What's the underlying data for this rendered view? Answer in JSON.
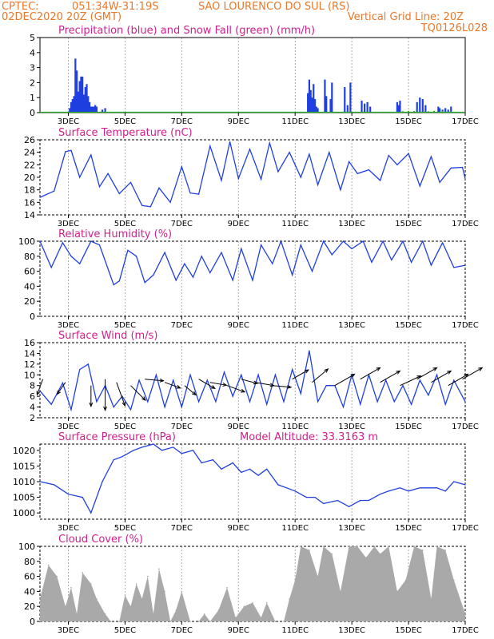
{
  "header": {
    "source": "CPTEC:",
    "coords": "051:34W-31:19S",
    "location": "SAO LOURENCO DO SUL (RS)",
    "run": "02DEC2020 20Z (GMT)",
    "grid_note": "Vertical Grid Line: 20Z",
    "code": "TQ0126L028"
  },
  "colors": {
    "header": "#e8782a",
    "title": "#d0208c",
    "series": "#1f3fe0",
    "snow": "#22aa22",
    "cloud": "#a9a9a9",
    "grid": "#9a9a9a"
  },
  "chart_data": [
    {
      "type": "bar",
      "title": "Precipitation (blue) and Snow Fall (green) (mm/h)",
      "x_tick_labels": [
        "3DEC",
        "5DEC",
        "7DEC",
        "9DEC",
        "11DEC",
        "13DEC",
        "15DEC",
        "17DEC"
      ],
      "ylim": [
        0,
        5
      ],
      "y_ticks": [
        0,
        1,
        2,
        3,
        4,
        5
      ],
      "series": [
        {
          "name": "Precipitation",
          "x": [
            1.05,
            1.1,
            1.15,
            1.2,
            1.25,
            1.3,
            1.35,
            1.4,
            1.45,
            1.5,
            1.55,
            1.6,
            1.65,
            1.7,
            1.75,
            1.8,
            1.85,
            1.9,
            1.95,
            2.0,
            2.2,
            2.3,
            9.45,
            9.5,
            9.55,
            9.6,
            9.65,
            9.7,
            9.75,
            9.8,
            10.05,
            10.1,
            10.25,
            10.3,
            10.75,
            10.85,
            10.95,
            11.35,
            11.45,
            11.55,
            11.65,
            12.6,
            12.65,
            12.7,
            13.3,
            13.4,
            13.5,
            13.6,
            14.05,
            14.1,
            14.2,
            14.3,
            14.4,
            14.5
          ],
          "values": [
            0.3,
            0.7,
            0.9,
            1.1,
            3.6,
            2.8,
            1.4,
            2.1,
            2.4,
            2.4,
            1.2,
            1.7,
            1.9,
            1.1,
            0.7,
            0.4,
            0.4,
            0.4,
            0.5,
            0.4,
            0.2,
            0.3,
            1.3,
            2.2,
            1.5,
            1.0,
            1.9,
            0.9,
            0.4,
            0.3,
            2.2,
            1.1,
            0.9,
            2.0,
            1.7,
            0.5,
            2.0,
            0.8,
            0.6,
            0.7,
            0.4,
            0.7,
            0.5,
            0.8,
            0.7,
            1.0,
            0.9,
            0.5,
            0.4,
            0.3,
            0.2,
            0.3,
            0.2,
            0.4
          ]
        },
        {
          "name": "Snow Fall",
          "x": [
            12.8,
            13.0,
            13.2,
            13.7,
            13.9,
            14.2
          ],
          "values": [
            0.04,
            0.06,
            0.05,
            0.04,
            0.06,
            0.05
          ]
        }
      ]
    },
    {
      "type": "line",
      "title": "Surface Temperature (nC)",
      "ylim": [
        14,
        26
      ],
      "y_ticks": [
        14,
        16,
        18,
        20,
        22,
        24,
        26
      ],
      "x": [
        0,
        0.5,
        0.9,
        1.1,
        1.4,
        1.8,
        2.1,
        2.4,
        2.8,
        3.2,
        3.6,
        3.9,
        4.2,
        4.6,
        5.0,
        5.3,
        5.6,
        6.0,
        6.4,
        6.7,
        7.0,
        7.4,
        7.8,
        8.1,
        8.4,
        8.8,
        9.2,
        9.5,
        9.8,
        10.2,
        10.6,
        10.9,
        11.2,
        11.6,
        12.0,
        12.3,
        12.6,
        13.0,
        13.4,
        13.8,
        14.1,
        14.5,
        14.9,
        15.0
      ],
      "values": [
        16.8,
        17.8,
        24.1,
        24.3,
        20.0,
        23.6,
        18.5,
        20.6,
        17.4,
        19.2,
        15.5,
        15.3,
        18.3,
        16.0,
        21.7,
        17.5,
        17.3,
        25.0,
        19.5,
        25.7,
        19.8,
        24.5,
        19.7,
        25.5,
        20.9,
        24.0,
        20.0,
        23.7,
        18.8,
        24.0,
        18.0,
        22.5,
        20.6,
        21.2,
        19.5,
        23.5,
        22.0,
        23.8,
        18.6,
        23.3,
        19.2,
        21.5,
        21.6,
        19.8
      ]
    },
    {
      "type": "line",
      "title": "Relative Humidity (%)",
      "ylim": [
        0,
        100
      ],
      "y_ticks": [
        0,
        20,
        40,
        60,
        80,
        100
      ],
      "x": [
        0,
        0.4,
        0.8,
        1.1,
        1.4,
        1.8,
        2.1,
        2.6,
        2.8,
        3.1,
        3.4,
        3.7,
        4.0,
        4.4,
        4.8,
        5.1,
        5.4,
        5.7,
        6.0,
        6.4,
        6.8,
        7.1,
        7.5,
        7.8,
        8.2,
        8.5,
        8.9,
        9.2,
        9.6,
        10.0,
        10.3,
        10.7,
        11.0,
        11.4,
        11.7,
        12.1,
        12.4,
        12.8,
        13.1,
        13.5,
        13.8,
        14.2,
        14.6,
        15.0
      ],
      "values": [
        100,
        65,
        98,
        80,
        70,
        100,
        95,
        42,
        47,
        88,
        80,
        45,
        55,
        85,
        48,
        70,
        52,
        80,
        58,
        85,
        48,
        90,
        48,
        95,
        70,
        100,
        55,
        95,
        60,
        100,
        82,
        100,
        90,
        100,
        72,
        100,
        75,
        100,
        72,
        100,
        68,
        98,
        65,
        68
      ]
    },
    {
      "type": "line",
      "title": "Surface Wind (m/s)",
      "ylim": [
        2,
        16
      ],
      "y_ticks": [
        2,
        4,
        6,
        8,
        10,
        12,
        14,
        16
      ],
      "x": [
        0,
        0.4,
        0.8,
        1.1,
        1.4,
        1.7,
        2.0,
        2.3,
        2.6,
        2.9,
        3.2,
        3.5,
        3.8,
        4.1,
        4.4,
        4.7,
        5.0,
        5.3,
        5.6,
        5.9,
        6.2,
        6.5,
        6.8,
        7.1,
        7.4,
        7.7,
        8.0,
        8.3,
        8.6,
        8.9,
        9.2,
        9.5,
        9.8,
        10.1,
        10.4,
        10.7,
        11.0,
        11.3,
        11.6,
        11.9,
        12.2,
        12.5,
        12.8,
        13.1,
        13.4,
        13.7,
        14.0,
        14.3,
        14.6,
        15.0
      ],
      "values": [
        7,
        4.5,
        8.5,
        3.5,
        11,
        12,
        5,
        8,
        4,
        6,
        3.5,
        9,
        5,
        10,
        4,
        9,
        4,
        10,
        5,
        9,
        5,
        10.5,
        6,
        10,
        5,
        10,
        4.5,
        10,
        5,
        11,
        6.5,
        14.5,
        5,
        8,
        8,
        4,
        10,
        4.5,
        10,
        5,
        9,
        5,
        8,
        4.5,
        9,
        6.2,
        10,
        4.5,
        9,
        5
      ],
      "arrows": [
        {
          "x": 0.1,
          "speed": 8,
          "dir": 200
        },
        {
          "x": 0.9,
          "speed": 7,
          "dir": 215
        },
        {
          "x": 1.8,
          "speed": 10,
          "dir": 180
        },
        {
          "x": 2.3,
          "speed": 15,
          "dir": 180
        },
        {
          "x": 2.7,
          "speed": 12,
          "dir": 160
        },
        {
          "x": 3.2,
          "speed": 10,
          "dir": 135
        },
        {
          "x": 3.7,
          "speed": 9,
          "dir": 95
        },
        {
          "x": 4.4,
          "speed": 8,
          "dir": 110
        },
        {
          "x": 5.1,
          "speed": 7,
          "dir": 130
        },
        {
          "x": 5.6,
          "speed": 9,
          "dir": 120
        },
        {
          "x": 6.0,
          "speed": 8,
          "dir": 100
        },
        {
          "x": 6.6,
          "speed": 9,
          "dir": 110
        },
        {
          "x": 7.1,
          "speed": 8,
          "dir": 105
        },
        {
          "x": 7.6,
          "speed": 9,
          "dir": 100
        },
        {
          "x": 8.2,
          "speed": 9,
          "dir": 95
        },
        {
          "x": 8.9,
          "speed": 9,
          "dir": 60
        },
        {
          "x": 9.6,
          "speed": 10,
          "dir": 50
        },
        {
          "x": 10.4,
          "speed": 11,
          "dir": 60
        },
        {
          "x": 11.3,
          "speed": 11,
          "dir": 60
        },
        {
          "x": 12.0,
          "speed": 11,
          "dir": 60
        },
        {
          "x": 12.7,
          "speed": 11,
          "dir": 65
        },
        {
          "x": 13.3,
          "speed": 11,
          "dir": 60
        },
        {
          "x": 13.8,
          "speed": 11,
          "dir": 60
        },
        {
          "x": 14.4,
          "speed": 11,
          "dir": 60
        },
        {
          "x": 14.9,
          "speed": 11,
          "dir": 60
        }
      ]
    },
    {
      "type": "line",
      "title": "Surface Pressure (hPa)",
      "annotation": "Model Altitude: 33.3163 m",
      "ylim": [
        998,
        1022
      ],
      "y_ticks": [
        1000,
        1005,
        1010,
        1015,
        1020
      ],
      "x": [
        0,
        0.5,
        1.0,
        1.5,
        1.8,
        2.2,
        2.6,
        2.9,
        3.3,
        3.6,
        4.0,
        4.3,
        4.7,
        5.0,
        5.4,
        5.7,
        6.1,
        6.4,
        6.8,
        7.1,
        7.4,
        7.7,
        8.0,
        8.4,
        8.7,
        9.0,
        9.4,
        9.7,
        10.0,
        10.5,
        10.9,
        11.3,
        11.6,
        12.0,
        12.3,
        12.7,
        13.0,
        13.4,
        13.7,
        14.0,
        14.3,
        14.6,
        15.0
      ],
      "values": [
        1010,
        1009,
        1006,
        1005,
        1000,
        1010,
        1017,
        1018,
        1020,
        1021,
        1022,
        1020,
        1021,
        1019,
        1020,
        1016,
        1017,
        1014,
        1016,
        1013,
        1014,
        1012,
        1014,
        1009,
        1008,
        1007,
        1005,
        1005,
        1003,
        1004,
        1002,
        1004,
        1004,
        1006,
        1007,
        1008,
        1007,
        1008,
        1008,
        1008,
        1007,
        1010,
        1009
      ]
    },
    {
      "type": "area",
      "title": "Cloud Cover (%)",
      "ylim": [
        0,
        100
      ],
      "y_ticks": [
        0,
        20,
        40,
        60,
        80,
        100
      ],
      "x": [
        0,
        0.3,
        0.6,
        0.9,
        1.1,
        1.3,
        1.5,
        1.8,
        2.0,
        2.3,
        2.5,
        2.8,
        3.0,
        3.2,
        3.4,
        3.6,
        3.8,
        4.0,
        4.2,
        4.4,
        4.6,
        4.8,
        5.0,
        5.3,
        5.6,
        5.8,
        6.0,
        6.3,
        6.6,
        6.9,
        7.2,
        7.5,
        7.8,
        8.0,
        8.3,
        8.6,
        8.8,
        9.0,
        9.2,
        9.5,
        9.8,
        10.0,
        10.3,
        10.6,
        10.9,
        11.2,
        11.5,
        11.8,
        12.0,
        12.3,
        12.6,
        12.9,
        13.2,
        13.5,
        13.8,
        14.0,
        14.3,
        14.6,
        15.0
      ],
      "values": [
        30,
        75,
        60,
        20,
        45,
        10,
        65,
        50,
        30,
        10,
        0,
        0,
        35,
        20,
        50,
        30,
        60,
        10,
        70,
        40,
        0,
        15,
        40,
        0,
        0,
        10,
        0,
        15,
        45,
        5,
        20,
        25,
        5,
        25,
        0,
        0,
        30,
        55,
        100,
        95,
        60,
        100,
        90,
        40,
        100,
        100,
        85,
        100,
        90,
        100,
        40,
        55,
        100,
        95,
        30,
        100,
        95,
        55,
        10
      ]
    }
  ]
}
